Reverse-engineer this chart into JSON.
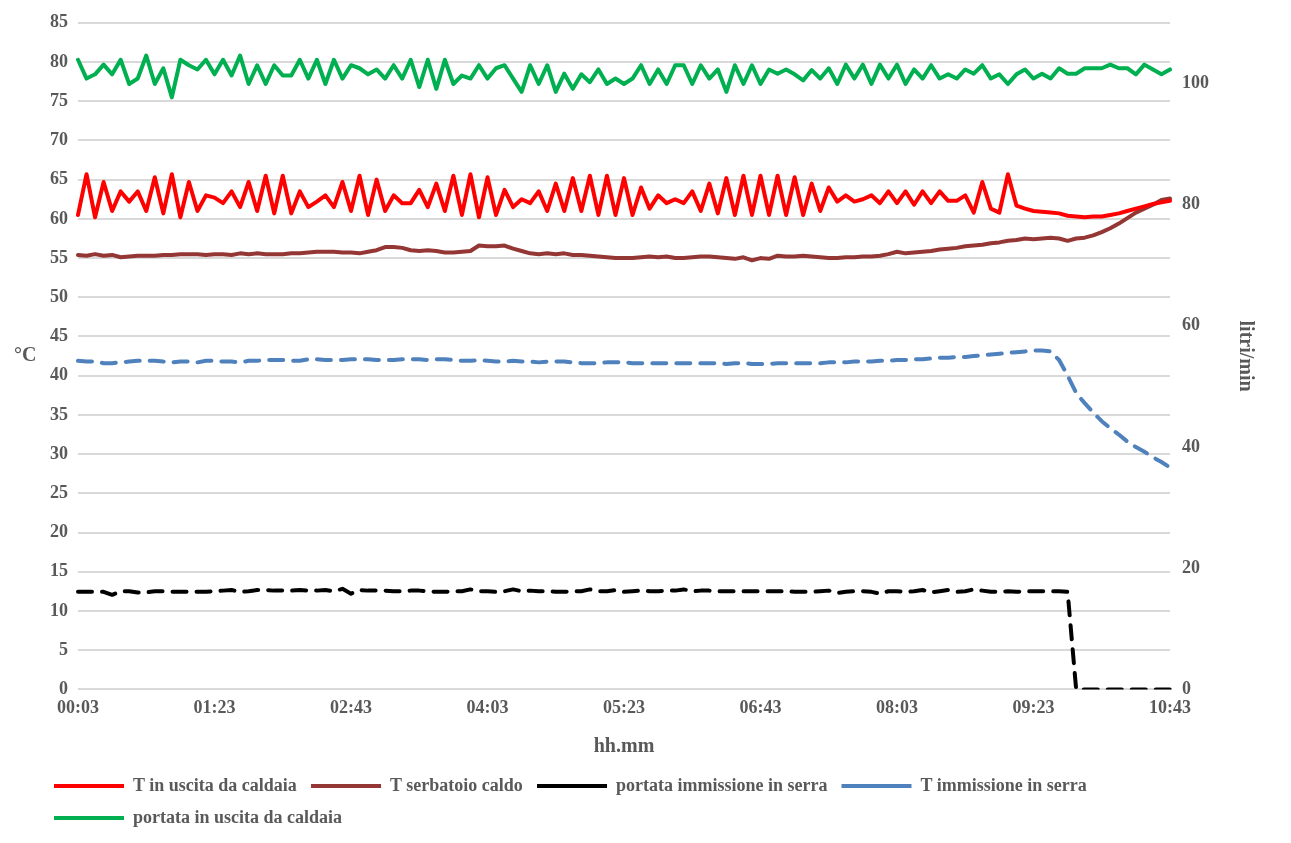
{
  "chart_data": {
    "type": "line",
    "xlabel": "hh.mm",
    "ylabel": "°C",
    "y2label": "litri/min",
    "categories": [
      "00:03",
      null,
      null,
      null,
      null,
      null,
      null,
      null,
      null,
      null,
      null,
      null,
      null,
      null,
      null,
      null,
      "01:23",
      null,
      null,
      null,
      null,
      null,
      null,
      null,
      null,
      null,
      null,
      null,
      null,
      null,
      null,
      null,
      "02:43",
      null,
      null,
      null,
      null,
      null,
      null,
      null,
      null,
      null,
      null,
      null,
      null,
      null,
      null,
      null,
      "04:03",
      null,
      null,
      null,
      null,
      null,
      null,
      null,
      null,
      null,
      null,
      null,
      null,
      null,
      null,
      null,
      "05:23",
      null,
      null,
      null,
      null,
      null,
      null,
      null,
      null,
      null,
      null,
      null,
      null,
      null,
      null,
      null,
      "06:43",
      null,
      null,
      null,
      null,
      null,
      null,
      null,
      null,
      null,
      null,
      null,
      null,
      null,
      null,
      null,
      "08:03",
      null,
      null,
      null,
      null,
      null,
      null,
      null,
      null,
      null,
      null,
      null,
      null,
      null,
      null,
      null,
      "09:23",
      null,
      null,
      null,
      null,
      null,
      null,
      null,
      null,
      null,
      null,
      null,
      null,
      null,
      null,
      null,
      "10:43"
    ],
    "ylim": [
      0,
      85
    ],
    "yticks": [
      0,
      5,
      10,
      15,
      20,
      25,
      30,
      35,
      40,
      45,
      50,
      55,
      60,
      65,
      70,
      75,
      80,
      85
    ],
    "y2lim": [
      0,
      110
    ],
    "y2ticks": [
      0,
      20,
      40,
      60,
      80,
      100
    ],
    "grid": "y",
    "legend": "bottom",
    "marker": "none",
    "series": [
      {
        "name": "T in uscita da caldaia",
        "color": "#ff0000",
        "line_style": "solid",
        "values": [
          60.5,
          65.7,
          60.2,
          64.7,
          61,
          63.5,
          62.2,
          63.5,
          61,
          65.3,
          60.7,
          65.7,
          60.2,
          64.7,
          61,
          63,
          62.7,
          62,
          63.5,
          61.5,
          64.7,
          61,
          65.5,
          60.7,
          65.5,
          60.7,
          63.5,
          61.5,
          62.2,
          63,
          61.5,
          64.7,
          61,
          65.5,
          60.5,
          65,
          61,
          63,
          62,
          62,
          63.7,
          61.5,
          64.5,
          61,
          65.5,
          60.5,
          65.7,
          60.2,
          65.3,
          60.5,
          63.7,
          61.5,
          62.5,
          62,
          63.5,
          61,
          64.5,
          61,
          65.2,
          61,
          65.5,
          60.5,
          65.5,
          60.5,
          65.2,
          60.5,
          64,
          61.3,
          63,
          62,
          62.5,
          62,
          63.5,
          61,
          64.5,
          60.7,
          65.2,
          60.5,
          65.5,
          60.5,
          65.5,
          60.5,
          65.5,
          60.5,
          65.3,
          60.5,
          64.5,
          61,
          64,
          62.2,
          63,
          62.2,
          62.5,
          63,
          62,
          63.5,
          62,
          63.5,
          61.8,
          63.5,
          62,
          63.5,
          62.3,
          62.3,
          63,
          60.8,
          64.7,
          61.3,
          60.8,
          65.7,
          61.7,
          61.3,
          61,
          60.9,
          60.8,
          60.7,
          60.4,
          60.3,
          60.2,
          60.3,
          60.3,
          60.5,
          60.7,
          61,
          61.3,
          61.6,
          61.9,
          62.1,
          62.3
        ]
      },
      {
        "name": "T serbatoio caldo",
        "color": "#943634",
        "line_style": "solid",
        "values": [
          55.4,
          55.3,
          55.5,
          55.3,
          55.4,
          55.1,
          55.2,
          55.3,
          55.3,
          55.3,
          55.4,
          55.4,
          55.5,
          55.5,
          55.5,
          55.4,
          55.5,
          55.5,
          55.4,
          55.6,
          55.5,
          55.6,
          55.5,
          55.5,
          55.5,
          55.6,
          55.6,
          55.7,
          55.8,
          55.8,
          55.8,
          55.7,
          55.7,
          55.6,
          55.8,
          56.0,
          56.4,
          56.4,
          56.3,
          56.0,
          55.9,
          56.0,
          55.9,
          55.7,
          55.7,
          55.8,
          55.9,
          56.6,
          56.5,
          56.5,
          56.6,
          56.2,
          55.9,
          55.6,
          55.5,
          55.6,
          55.5,
          55.6,
          55.4,
          55.4,
          55.3,
          55.2,
          55.1,
          55.0,
          55.0,
          55.0,
          55.1,
          55.2,
          55.1,
          55.2,
          55.0,
          55.0,
          55.1,
          55.2,
          55.2,
          55.1,
          55.0,
          54.9,
          55.1,
          54.7,
          55.0,
          54.9,
          55.3,
          55.2,
          55.2,
          55.3,
          55.2,
          55.1,
          55.0,
          55.0,
          55.1,
          55.1,
          55.2,
          55.2,
          55.3,
          55.5,
          55.8,
          55.6,
          55.7,
          55.8,
          55.9,
          56.1,
          56.2,
          56.3,
          56.5,
          56.6,
          56.7,
          56.9,
          57.0,
          57.2,
          57.3,
          57.5,
          57.4,
          57.5,
          57.6,
          57.5,
          57.2,
          57.5,
          57.6,
          57.9,
          58.3,
          58.8,
          59.4,
          60.1,
          60.8,
          61.3,
          61.8,
          62.4,
          62.6
        ]
      },
      {
        "name": "portata immissione in serra",
        "color": "#000000",
        "line_style": "dashed",
        "axis": "y2",
        "values": [
          16.1,
          16.1,
          16.1,
          16.1,
          15.6,
          16.2,
          16.2,
          16.0,
          16.0,
          16.2,
          16.2,
          16.1,
          16.1,
          16.1,
          16.1,
          16.1,
          16.2,
          16.3,
          16.4,
          16.1,
          16.2,
          16.4,
          16.4,
          16.3,
          16.3,
          16.3,
          16.4,
          16.3,
          16.3,
          16.4,
          16.2,
          16.6,
          15.8,
          16.4,
          16.3,
          16.3,
          16.3,
          16.2,
          16.2,
          16.3,
          16.3,
          16.2,
          16.1,
          16.1,
          16.2,
          16.2,
          16.5,
          16.2,
          16.2,
          16.1,
          16.2,
          16.5,
          16.2,
          16.3,
          16.2,
          16.2,
          16.1,
          16.1,
          16.2,
          16.2,
          16.5,
          16.2,
          16.2,
          16.4,
          16.1,
          16.2,
          16.3,
          16.2,
          16.2,
          16.3,
          16.3,
          16.5,
          16.2,
          16.3,
          16.3,
          16.2,
          16.2,
          16.2,
          16.2,
          16.2,
          16.2,
          16.2,
          16.2,
          16.2,
          16.1,
          16.1,
          16.1,
          16.2,
          16.3,
          15.9,
          16.1,
          16.2,
          16.2,
          16.1,
          15.8,
          16.2,
          16.2,
          16.1,
          16.2,
          16.4,
          16.0,
          16.2,
          16.4,
          16.1,
          16.2,
          16.5,
          16.3,
          16.1,
          16.1,
          16.2,
          16.1,
          16.2,
          16.2,
          16.2,
          16.2,
          16.2,
          16.1,
          0,
          0,
          0,
          0,
          0,
          0,
          0,
          0,
          0,
          0,
          0,
          0
        ]
      },
      {
        "name": "T immissione in serra",
        "color": "#4f81bd",
        "line_style": "dashed",
        "values": [
          41.9,
          41.8,
          41.8,
          41.6,
          41.6,
          41.7,
          41.8,
          41.9,
          41.9,
          41.9,
          41.8,
          41.7,
          41.8,
          41.8,
          41.7,
          41.9,
          41.9,
          41.8,
          41.8,
          41.7,
          41.9,
          41.9,
          42.0,
          42.0,
          42.0,
          41.9,
          41.9,
          42.1,
          42.1,
          42.0,
          42.0,
          42.0,
          42.1,
          42.1,
          42.1,
          42.0,
          42.0,
          42.0,
          42.1,
          42.1,
          42.1,
          42.0,
          42.1,
          42.1,
          42.0,
          41.9,
          41.9,
          42.0,
          41.9,
          41.8,
          41.8,
          41.9,
          41.8,
          41.8,
          41.7,
          41.8,
          41.8,
          41.8,
          41.7,
          41.6,
          41.6,
          41.6,
          41.7,
          41.7,
          41.7,
          41.6,
          41.6,
          41.6,
          41.6,
          41.6,
          41.6,
          41.6,
          41.6,
          41.6,
          41.6,
          41.6,
          41.5,
          41.6,
          41.6,
          41.5,
          41.5,
          41.5,
          41.6,
          41.6,
          41.6,
          41.6,
          41.6,
          41.6,
          41.7,
          41.7,
          41.7,
          41.8,
          41.8,
          41.8,
          41.9,
          41.9,
          42.0,
          42.0,
          42.1,
          42.1,
          42.2,
          42.3,
          42.3,
          42.4,
          42.4,
          42.5,
          42.6,
          42.7,
          42.8,
          42.9,
          43.0,
          43.1,
          43.2,
          43.2,
          43.1,
          42.0,
          40.0,
          37.8,
          36.5,
          35.3,
          34.2,
          33.3,
          32.5,
          31.6,
          30.9,
          30.3,
          29.6,
          29.0,
          28.3
        ]
      },
      {
        "name": "portata in uscita da caldaia",
        "color": "#00b050",
        "line_style": "solid",
        "axis": "y2",
        "values": [
          103.9,
          100.8,
          101.5,
          103.1,
          101.5,
          103.9,
          99.9,
          100.8,
          104.6,
          99.9,
          102.5,
          97.7,
          103.9,
          103,
          102.3,
          103.9,
          101.5,
          103.9,
          101.3,
          104.6,
          99.9,
          103,
          99.9,
          103,
          101.3,
          101.3,
          103.9,
          100.8,
          103.9,
          99.9,
          103.9,
          100.8,
          103,
          102.5,
          101.5,
          102.3,
          100.8,
          103,
          100.8,
          103.9,
          99.4,
          103.9,
          99.1,
          103.9,
          99.9,
          101.3,
          100.8,
          103,
          100.8,
          102.5,
          103,
          100.8,
          98.6,
          103,
          99.9,
          103,
          98.6,
          101.6,
          99.1,
          101.5,
          100.2,
          102.3,
          99.9,
          100.8,
          99.9,
          100.8,
          103,
          99.9,
          102.3,
          99.9,
          103,
          103,
          99.9,
          103,
          100.8,
          102.3,
          98.6,
          103,
          99.9,
          103,
          99.9,
          102.3,
          101.6,
          102.3,
          101.5,
          100.5,
          102.2,
          100.8,
          102.5,
          99.9,
          103.1,
          100.8,
          103.1,
          99.9,
          103.1,
          100.8,
          103.1,
          99.9,
          102.3,
          100.8,
          103,
          100.8,
          101.5,
          100.8,
          102.3,
          101.6,
          103,
          100.8,
          101.5,
          99.9,
          101.5,
          102.3,
          100.8,
          101.6,
          100.8,
          102.5,
          101.6,
          101.6,
          102.5,
          102.5,
          102.5,
          103.1,
          102.5,
          102.5,
          101.5,
          103.1,
          102.3,
          101.5,
          102.3
        ]
      }
    ]
  }
}
